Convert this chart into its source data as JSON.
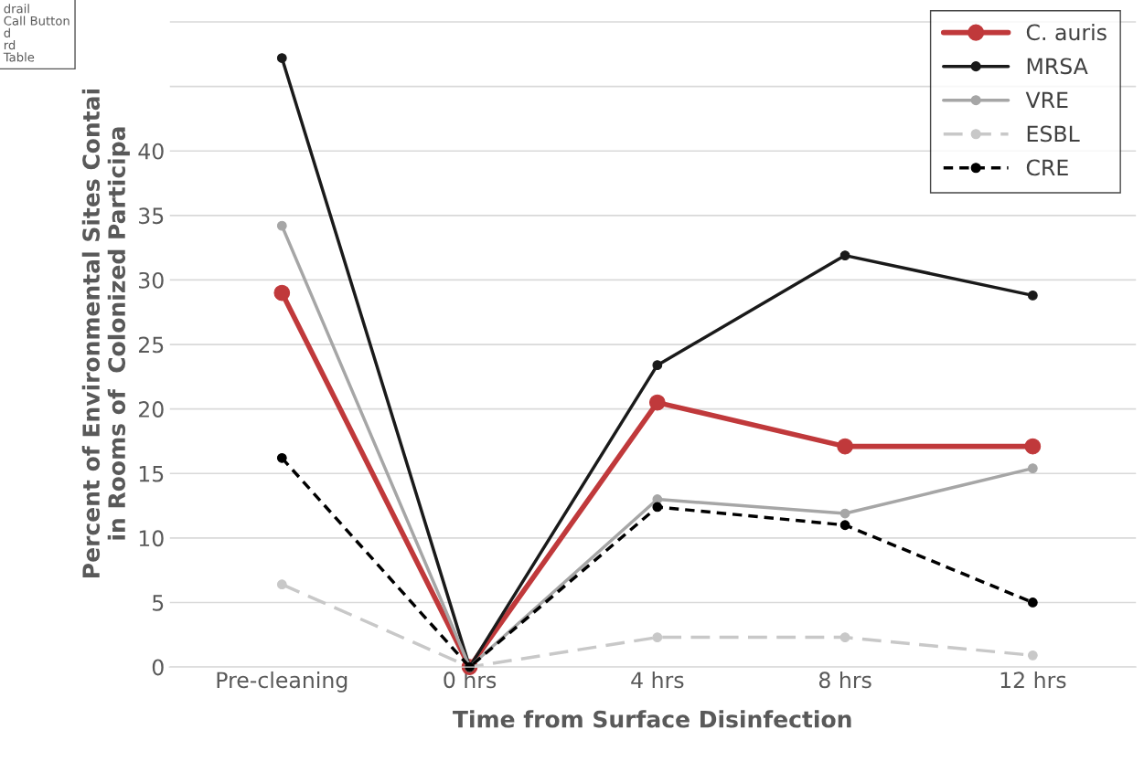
{
  "chart_data": {
    "type": "line",
    "xlabel": "Time from Surface Disinfection",
    "ylabel": "Percent of Environmental Sites Contai\nin Rooms of  Colonized Participa",
    "categories": [
      "Pre-cleaning",
      "0 hrs",
      "4 hrs",
      "8 hrs",
      "12 hrs"
    ],
    "series": [
      {
        "name": "C. auris",
        "color": "#c0393b",
        "values": [
          29.0,
          0,
          20.5,
          17.1,
          17.1
        ],
        "line_style": "solid"
      },
      {
        "name": "MRSA",
        "color": "#1a1a1a",
        "values": [
          47.2,
          0,
          23.4,
          31.9,
          28.8
        ],
        "line_style": "solid"
      },
      {
        "name": "VRE",
        "color": "#a6a6a6",
        "values": [
          34.2,
          0,
          13.0,
          11.9,
          15.4
        ],
        "line_style": "solid"
      },
      {
        "name": "ESBL",
        "color": "#c8c8c8",
        "values": [
          6.4,
          0,
          2.3,
          2.3,
          0.9
        ],
        "line_style": "dashed"
      },
      {
        "name": "CRE",
        "color": "#000000",
        "values": [
          16.2,
          0,
          12.4,
          11.0,
          5.0
        ],
        "line_style": "dotted"
      }
    ],
    "ylim": [
      0,
      51.7
    ],
    "yticks": [
      0,
      5,
      10,
      15,
      20,
      25,
      30,
      35,
      40,
      {
        "value": 45,
        "label": null
      },
      {
        "value": 50,
        "label": null
      }
    ],
    "annotations": [
      "drail",
      "Call Button",
      "d",
      "rd",
      "Table"
    ],
    "marker": "circle",
    "grid": "y",
    "legend": "top right"
  }
}
